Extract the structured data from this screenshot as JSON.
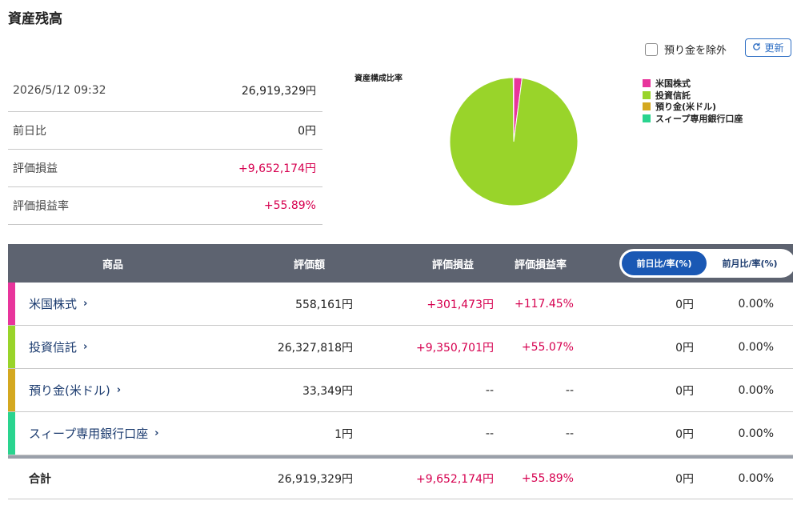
{
  "page_title": "資産残高",
  "controls": {
    "exclude_deposit_label": "預り金を除外",
    "refresh_label": "更新"
  },
  "summary": {
    "datetime": "2026/5/12 09:32",
    "total_value": "26,919,329",
    "total_unit": "円",
    "rows": [
      {
        "label": "前日比",
        "value": "0円"
      },
      {
        "label": "評価損益",
        "value": "+9,652,174円"
      },
      {
        "label": "評価損益率",
        "value": "+55.89%"
      }
    ]
  },
  "chart_data": {
    "type": "pie",
    "title": "資産構成比率",
    "categories": [
      "米国株式",
      "投資信託",
      "預り金(米ドル)",
      "スィープ専用銀行口座"
    ],
    "values": [
      558161,
      26327818,
      33349,
      1
    ],
    "colors": [
      "#e8359c",
      "#99d42a",
      "#d4a820",
      "#2ad48f"
    ],
    "legend_placement": "right"
  },
  "table": {
    "headers": {
      "product": "商品",
      "valuation": "評価額",
      "gain": "評価損益",
      "gain_rate": "評価損益率"
    },
    "toggle": {
      "day": "前日比/率(%)",
      "month": "前月比/率(%)"
    },
    "rows": [
      {
        "name": "米国株式",
        "color": "#e8359c",
        "valuation": "558,161円",
        "gain": "+301,473円",
        "rate": "+117.45%",
        "change": "0円",
        "change_rate": "0.00%"
      },
      {
        "name": "投資信託",
        "color": "#99d42a",
        "valuation": "26,327,818円",
        "gain": "+9,350,701円",
        "rate": "+55.07%",
        "change": "0円",
        "change_rate": "0.00%"
      },
      {
        "name": "預り金(米ドル)",
        "color": "#d4a820",
        "valuation": "33,349円",
        "gain": "--",
        "rate": "--",
        "change": "0円",
        "change_rate": "0.00%"
      },
      {
        "name": "スィープ専用銀行口座",
        "color": "#2ad48f",
        "valuation": "1円",
        "gain": "--",
        "rate": "--",
        "change": "0円",
        "change_rate": "0.00%"
      }
    ],
    "total": {
      "label": "合計",
      "valuation": "26,919,329円",
      "gain": "+9,652,174円",
      "rate": "+55.89%",
      "change": "0円",
      "change_rate": "0.00%"
    }
  }
}
